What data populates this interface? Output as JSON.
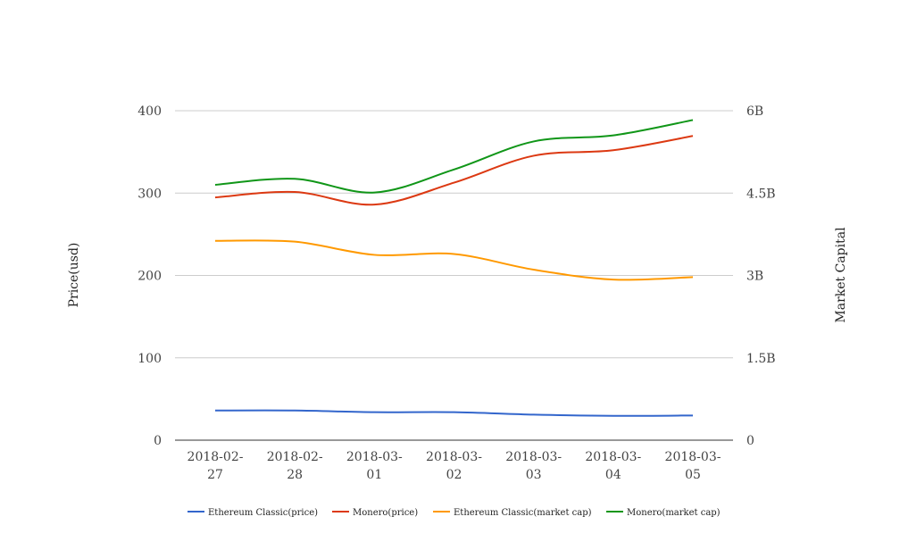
{
  "chart_data": {
    "type": "line",
    "categories": [
      "2018-02-27",
      "2018-02-28",
      "2018-03-01",
      "2018-03-02",
      "2018-03-03",
      "2018-03-04",
      "2018-03-05"
    ],
    "category_labels": [
      [
        "2018-02-",
        "27"
      ],
      [
        "2018-02-",
        "28"
      ],
      [
        "2018-03-",
        "01"
      ],
      [
        "2018-03-",
        "02"
      ],
      [
        "2018-03-",
        "03"
      ],
      [
        "2018-03-",
        "04"
      ],
      [
        "2018-03-",
        "05"
      ]
    ],
    "ylabel": "Price(usd)",
    "y2label": "Market Capital",
    "ylim": [
      0,
      400
    ],
    "y2lim": [
      0,
      6000000000
    ],
    "yticks": [
      {
        "value": 0,
        "label": "0"
      },
      {
        "value": 100,
        "label": "100"
      },
      {
        "value": 200,
        "label": "200"
      },
      {
        "value": 300,
        "label": "300"
      },
      {
        "value": 400,
        "label": "400"
      }
    ],
    "y2ticks": [
      {
        "value": 0,
        "label": "0"
      },
      {
        "value": 1500000000,
        "label": "1.5B"
      },
      {
        "value": 3000000000,
        "label": "3B"
      },
      {
        "value": 4500000000,
        "label": "4.5B"
      },
      {
        "value": 6000000000,
        "label": "6B"
      }
    ],
    "grid": true,
    "legend_position": "bottom",
    "series": [
      {
        "name": "Ethereum Classic(price)",
        "axis": "left",
        "color": "#3366cc",
        "values": [
          36,
          36,
          34,
          34,
          31,
          29.5,
          30
        ]
      },
      {
        "name": "Monero(price)",
        "axis": "right",
        "color": "#dc3912",
        "values": [
          4420000000,
          4520000000,
          4290000000,
          4690000000,
          5180000000,
          5280000000,
          5540000000
        ]
      },
      {
        "name": "Ethereum Classic(market cap)",
        "axis": "left",
        "color": "#ff9900",
        "values": [
          242,
          241,
          225,
          226,
          207,
          195,
          198
        ]
      },
      {
        "name": "Monero(market cap)",
        "axis": "right",
        "color": "#109618",
        "values": [
          4650000000,
          4760000000,
          4510000000,
          4930000000,
          5440000000,
          5550000000,
          5830000000
        ]
      }
    ]
  }
}
